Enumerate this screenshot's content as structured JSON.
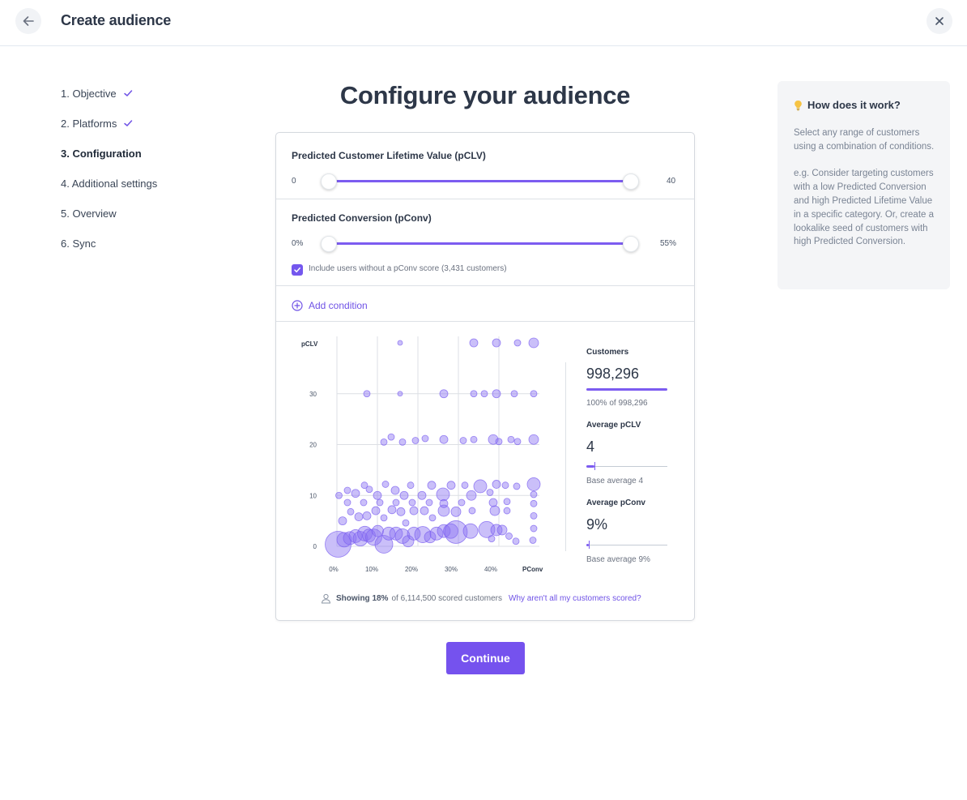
{
  "header": {
    "title": "Create audience"
  },
  "steps": [
    {
      "label": "1. Objective",
      "done": true
    },
    {
      "label": "2. Platforms",
      "done": true
    },
    {
      "label": "3. Configuration",
      "active": true
    },
    {
      "label": "4. Additional settings"
    },
    {
      "label": "5. Overview"
    },
    {
      "label": "6. Sync"
    }
  ],
  "page_title": "Configure your audience",
  "pclv": {
    "label": "Predicted Customer Lifetime Value (pCLV)",
    "min": "0",
    "max": "40",
    "range": [
      0,
      40
    ]
  },
  "pconv": {
    "label": "Predicted Conversion (pConv)",
    "min": "0%",
    "max": "55%",
    "range": [
      0,
      55
    ],
    "include_label": "Include users without a pConv score (3,431 customers)",
    "include_checked": true
  },
  "add_condition": "Add condition",
  "chart_data": {
    "type": "scatter",
    "ylabel": "pCLV",
    "xlabel": "PConv",
    "ylim": [
      0,
      40
    ],
    "xlim": [
      0,
      50
    ],
    "y_ticks": [
      "0",
      "10",
      "20",
      "30"
    ],
    "x_ticks": [
      "0%",
      "10%",
      "20%",
      "30%",
      "40%"
    ],
    "grid": true,
    "points": [
      {
        "x": 0.3,
        "y": 0.4,
        "s": 16
      },
      {
        "x": 1.8,
        "y": 1.3,
        "s": 9
      },
      {
        "x": 3.2,
        "y": 1.6,
        "s": 8
      },
      {
        "x": 4.6,
        "y": 2.0,
        "s": 8
      },
      {
        "x": 5.8,
        "y": 1.5,
        "s": 9
      },
      {
        "x": 6.9,
        "y": 2.5,
        "s": 9
      },
      {
        "x": 7.9,
        "y": 2.1,
        "s": 8
      },
      {
        "x": 9.1,
        "y": 1.8,
        "s": 10
      },
      {
        "x": 10.1,
        "y": 3.0,
        "s": 7
      },
      {
        "x": 11.6,
        "y": 0.4,
        "s": 11
      },
      {
        "x": 12.8,
        "y": 2.5,
        "s": 8
      },
      {
        "x": 14.6,
        "y": 2.5,
        "s": 8
      },
      {
        "x": 16.2,
        "y": 2.0,
        "s": 9
      },
      {
        "x": 17.6,
        "y": 1.0,
        "s": 7
      },
      {
        "x": 19.0,
        "y": 2.5,
        "s": 8
      },
      {
        "x": 21.2,
        "y": 2.3,
        "s": 10
      },
      {
        "x": 23.0,
        "y": 1.8,
        "s": 7
      },
      {
        "x": 24.6,
        "y": 2.5,
        "s": 8
      },
      {
        "x": 26.4,
        "y": 3.0,
        "s": 8
      },
      {
        "x": 28.1,
        "y": 3.0,
        "s": 9
      },
      {
        "x": 29.4,
        "y": 2.8,
        "s": 14
      },
      {
        "x": 33.0,
        "y": 3.0,
        "s": 9
      },
      {
        "x": 37.0,
        "y": 3.3,
        "s": 10
      },
      {
        "x": 38.2,
        "y": 1.5,
        "s": 4
      },
      {
        "x": 39.4,
        "y": 3.2,
        "s": 7
      },
      {
        "x": 40.8,
        "y": 3.2,
        "s": 6
      },
      {
        "x": 42.5,
        "y": 2.0,
        "s": 4
      },
      {
        "x": 44.2,
        "y": 1.0,
        "s": 4
      },
      {
        "x": 48.4,
        "y": 1.2,
        "s": 4
      },
      {
        "x": 48.6,
        "y": 3.5,
        "s": 4
      },
      {
        "x": 1.4,
        "y": 5.0,
        "s": 5
      },
      {
        "x": 3.4,
        "y": 6.8,
        "s": 4
      },
      {
        "x": 5.4,
        "y": 5.8,
        "s": 5
      },
      {
        "x": 7.4,
        "y": 6.0,
        "s": 5
      },
      {
        "x": 9.6,
        "y": 7.0,
        "s": 5
      },
      {
        "x": 11.6,
        "y": 5.6,
        "s": 4
      },
      {
        "x": 13.6,
        "y": 7.2,
        "s": 5
      },
      {
        "x": 15.8,
        "y": 6.8,
        "s": 5
      },
      {
        "x": 17.0,
        "y": 4.6,
        "s": 4
      },
      {
        "x": 19.0,
        "y": 7.0,
        "s": 5
      },
      {
        "x": 21.6,
        "y": 7.0,
        "s": 5
      },
      {
        "x": 23.6,
        "y": 5.6,
        "s": 4
      },
      {
        "x": 26.4,
        "y": 7.0,
        "s": 7
      },
      {
        "x": 29.4,
        "y": 6.8,
        "s": 6
      },
      {
        "x": 33.4,
        "y": 7.0,
        "s": 4
      },
      {
        "x": 39.0,
        "y": 7.0,
        "s": 6
      },
      {
        "x": 42.0,
        "y": 7.0,
        "s": 4
      },
      {
        "x": 48.6,
        "y": 6.0,
        "s": 4
      },
      {
        "x": 0.5,
        "y": 10.0,
        "s": 4
      },
      {
        "x": 2.6,
        "y": 11.0,
        "s": 4
      },
      {
        "x": 4.6,
        "y": 10.4,
        "s": 5
      },
      {
        "x": 6.8,
        "y": 12.0,
        "s": 4
      },
      {
        "x": 8.0,
        "y": 11.2,
        "s": 4
      },
      {
        "x": 10.0,
        "y": 10.0,
        "s": 5
      },
      {
        "x": 12.0,
        "y": 12.2,
        "s": 4
      },
      {
        "x": 14.4,
        "y": 11.0,
        "s": 5
      },
      {
        "x": 16.6,
        "y": 10.0,
        "s": 5
      },
      {
        "x": 18.2,
        "y": 12.0,
        "s": 4
      },
      {
        "x": 21.0,
        "y": 10.0,
        "s": 5
      },
      {
        "x": 23.4,
        "y": 12.0,
        "s": 5
      },
      {
        "x": 26.2,
        "y": 10.2,
        "s": 8
      },
      {
        "x": 28.2,
        "y": 12.0,
        "s": 5
      },
      {
        "x": 31.6,
        "y": 12.0,
        "s": 4
      },
      {
        "x": 33.2,
        "y": 10.0,
        "s": 6
      },
      {
        "x": 35.4,
        "y": 11.8,
        "s": 8
      },
      {
        "x": 37.8,
        "y": 10.6,
        "s": 4
      },
      {
        "x": 39.4,
        "y": 12.2,
        "s": 5
      },
      {
        "x": 41.6,
        "y": 12.0,
        "s": 4
      },
      {
        "x": 44.4,
        "y": 11.8,
        "s": 4
      },
      {
        "x": 48.6,
        "y": 12.2,
        "s": 8
      },
      {
        "x": 48.6,
        "y": 10.2,
        "s": 4
      },
      {
        "x": 2.6,
        "y": 8.6,
        "s": 4
      },
      {
        "x": 6.6,
        "y": 8.6,
        "s": 4
      },
      {
        "x": 10.6,
        "y": 8.6,
        "s": 4
      },
      {
        "x": 14.6,
        "y": 8.6,
        "s": 4
      },
      {
        "x": 18.6,
        "y": 8.6,
        "s": 4
      },
      {
        "x": 22.8,
        "y": 8.6,
        "s": 4
      },
      {
        "x": 26.4,
        "y": 8.4,
        "s": 5
      },
      {
        "x": 30.8,
        "y": 8.6,
        "s": 4
      },
      {
        "x": 38.6,
        "y": 8.6,
        "s": 5
      },
      {
        "x": 42.0,
        "y": 8.8,
        "s": 4
      },
      {
        "x": 48.6,
        "y": 8.4,
        "s": 4
      },
      {
        "x": 11.6,
        "y": 20.5,
        "s": 4
      },
      {
        "x": 13.4,
        "y": 21.5,
        "s": 4
      },
      {
        "x": 16.2,
        "y": 20.5,
        "s": 4
      },
      {
        "x": 19.4,
        "y": 20.8,
        "s": 4
      },
      {
        "x": 21.8,
        "y": 21.2,
        "s": 4
      },
      {
        "x": 26.4,
        "y": 21.0,
        "s": 5
      },
      {
        "x": 31.2,
        "y": 20.8,
        "s": 4
      },
      {
        "x": 33.8,
        "y": 21.0,
        "s": 4
      },
      {
        "x": 38.6,
        "y": 21.0,
        "s": 6
      },
      {
        "x": 40.0,
        "y": 20.6,
        "s": 4
      },
      {
        "x": 43.0,
        "y": 21.0,
        "s": 4
      },
      {
        "x": 44.6,
        "y": 20.6,
        "s": 4
      },
      {
        "x": 48.6,
        "y": 21.0,
        "s": 6
      },
      {
        "x": 7.4,
        "y": 30.0,
        "s": 4
      },
      {
        "x": 15.6,
        "y": 30.0,
        "s": 3
      },
      {
        "x": 26.4,
        "y": 30.0,
        "s": 5
      },
      {
        "x": 33.8,
        "y": 30.0,
        "s": 4
      },
      {
        "x": 36.4,
        "y": 30.0,
        "s": 4
      },
      {
        "x": 39.4,
        "y": 30.0,
        "s": 5
      },
      {
        "x": 43.8,
        "y": 30.0,
        "s": 4
      },
      {
        "x": 48.6,
        "y": 30.0,
        "s": 4
      },
      {
        "x": 15.6,
        "y": 40.0,
        "s": 3
      },
      {
        "x": 33.8,
        "y": 40.0,
        "s": 5
      },
      {
        "x": 39.4,
        "y": 40.0,
        "s": 5
      },
      {
        "x": 44.6,
        "y": 40.0,
        "s": 4
      },
      {
        "x": 48.6,
        "y": 40.0,
        "s": 6
      }
    ]
  },
  "stats": {
    "customers": {
      "label": "Customers",
      "value": "998,296",
      "note": "100% of 998,296",
      "fill": 1.0
    },
    "avg_pclv": {
      "label": "Average pCLV",
      "value": "4",
      "note": "Base average 4",
      "fill": 0.1
    },
    "avg_pconv": {
      "label": "Average pConv",
      "value": "9%",
      "note": "Base average 9%",
      "fill": 0.03
    }
  },
  "footer": {
    "showing": "Showing 18%",
    "rest": "of 6,114,500 scored customers",
    "why_link": "Why aren't all my customers scored?"
  },
  "continue_label": "Continue",
  "help": {
    "icon": "bulb-icon",
    "title": "How does it work?",
    "text": "Select any range of customers using a combination of conditions.\n\ne.g. Consider targeting customers with a low Predicted Conversion and high Predicted Lifetime Value in a specific category. Or, create a lookalike seed of customers with high Predicted Conversion."
  },
  "colors": {
    "accent": "#7552ee",
    "bubble": "#8a70f2"
  }
}
